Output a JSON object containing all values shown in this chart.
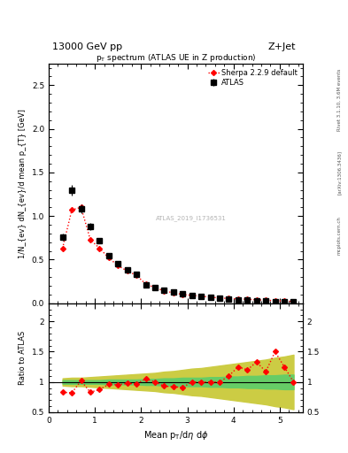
{
  "title_left": "13000 GeV pp",
  "title_right": "Z+Jet",
  "plot_title": "p_{T} spectrum (ATLAS UE in Z production)",
  "xlabel": "Mean p_{T}/dη dφ",
  "ylabel_main": "1/N_{ev} dN_{ev}/d mean p_{T} [GeV]",
  "ylabel_ratio": "Ratio to ATLAS",
  "watermark": "ATLAS_2019_I1736531",
  "side_text_top": "Rivet 3.1.10, 3.6M events",
  "side_text_bot": "[arXiv:1306.3436]",
  "side_text_url": "mcplots.cern.ch",
  "xlim": [
    0,
    5.5
  ],
  "ylim_main": [
    0,
    2.75
  ],
  "ylim_ratio": [
    0.5,
    2.3
  ],
  "atlas_x": [
    0.3,
    0.5,
    0.7,
    0.9,
    1.1,
    1.3,
    1.5,
    1.7,
    1.9,
    2.1,
    2.3,
    2.5,
    2.7,
    2.9,
    3.1,
    3.3,
    3.5,
    3.7,
    3.9,
    4.1,
    4.3,
    4.5,
    4.7,
    4.9,
    5.1,
    5.3
  ],
  "atlas_y": [
    0.76,
    1.3,
    1.08,
    0.88,
    0.72,
    0.54,
    0.45,
    0.38,
    0.33,
    0.21,
    0.18,
    0.15,
    0.13,
    0.11,
    0.09,
    0.08,
    0.07,
    0.06,
    0.05,
    0.04,
    0.04,
    0.03,
    0.03,
    0.02,
    0.02,
    0.02
  ],
  "atlas_yerr": [
    0.04,
    0.06,
    0.05,
    0.04,
    0.03,
    0.03,
    0.02,
    0.02,
    0.02,
    0.01,
    0.01,
    0.01,
    0.01,
    0.01,
    0.005,
    0.005,
    0.005,
    0.004,
    0.003,
    0.003,
    0.003,
    0.002,
    0.002,
    0.002,
    0.002,
    0.002
  ],
  "sherpa_x": [
    0.3,
    0.5,
    0.7,
    0.9,
    1.1,
    1.3,
    1.5,
    1.7,
    1.9,
    2.1,
    2.3,
    2.5,
    2.7,
    2.9,
    3.1,
    3.3,
    3.5,
    3.7,
    3.9,
    4.1,
    4.3,
    4.5,
    4.7,
    4.9,
    5.1,
    5.3
  ],
  "sherpa_y": [
    0.63,
    1.07,
    1.1,
    0.73,
    0.63,
    0.52,
    0.43,
    0.37,
    0.32,
    0.22,
    0.18,
    0.14,
    0.12,
    0.1,
    0.09,
    0.08,
    0.07,
    0.06,
    0.055,
    0.05,
    0.045,
    0.04,
    0.035,
    0.03,
    0.025,
    0.02
  ],
  "ratio_sherpa_y": [
    0.83,
    0.82,
    1.02,
    0.83,
    0.875,
    0.96,
    0.955,
    0.975,
    0.97,
    1.05,
    1.0,
    0.93,
    0.92,
    0.91,
    1.0,
    1.0,
    1.0,
    1.0,
    1.1,
    1.25,
    1.2,
    1.33,
    1.17,
    1.5,
    1.25,
    1.0
  ],
  "green_band_lower": [
    0.97,
    0.97,
    0.97,
    0.97,
    0.97,
    0.96,
    0.96,
    0.96,
    0.96,
    0.95,
    0.95,
    0.94,
    0.94,
    0.93,
    0.93,
    0.93,
    0.92,
    0.92,
    0.91,
    0.91,
    0.9,
    0.9,
    0.89,
    0.89,
    0.88,
    0.88
  ],
  "green_band_upper": [
    1.03,
    1.03,
    1.03,
    1.03,
    1.03,
    1.04,
    1.04,
    1.04,
    1.04,
    1.05,
    1.05,
    1.06,
    1.06,
    1.07,
    1.07,
    1.07,
    1.08,
    1.08,
    1.09,
    1.09,
    1.1,
    1.1,
    1.11,
    1.11,
    1.12,
    1.12
  ],
  "yellow_band_lower": [
    0.94,
    0.93,
    0.93,
    0.92,
    0.91,
    0.9,
    0.89,
    0.88,
    0.87,
    0.86,
    0.85,
    0.83,
    0.82,
    0.8,
    0.78,
    0.77,
    0.75,
    0.73,
    0.71,
    0.69,
    0.67,
    0.65,
    0.63,
    0.6,
    0.58,
    0.55
  ],
  "yellow_band_upper": [
    1.06,
    1.07,
    1.07,
    1.08,
    1.09,
    1.1,
    1.11,
    1.12,
    1.13,
    1.14,
    1.15,
    1.17,
    1.18,
    1.2,
    1.22,
    1.23,
    1.25,
    1.27,
    1.29,
    1.31,
    1.33,
    1.35,
    1.37,
    1.4,
    1.42,
    1.45
  ],
  "atlas_color": "black",
  "sherpa_color": "red",
  "green_color": "#66cc66",
  "yellow_color": "#cccc44",
  "background_color": "white"
}
